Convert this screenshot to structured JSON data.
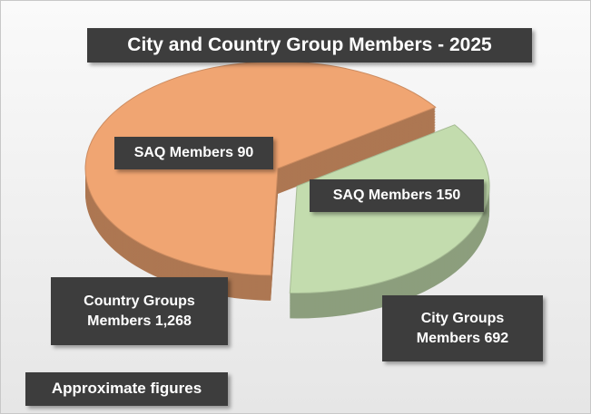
{
  "chart_data": {
    "type": "pie",
    "title": "City and Country Group Members - 2025",
    "values": [
      1268,
      692
    ],
    "value_labels": [
      "Country Groups Members 1,268",
      "City Groups Members 692"
    ],
    "colors": [
      "#f0a572",
      "#c3dcae"
    ],
    "annotations": [
      "SAQ Members 90",
      "SAQ Members 150"
    ],
    "note": "Approximate figures"
  }
}
